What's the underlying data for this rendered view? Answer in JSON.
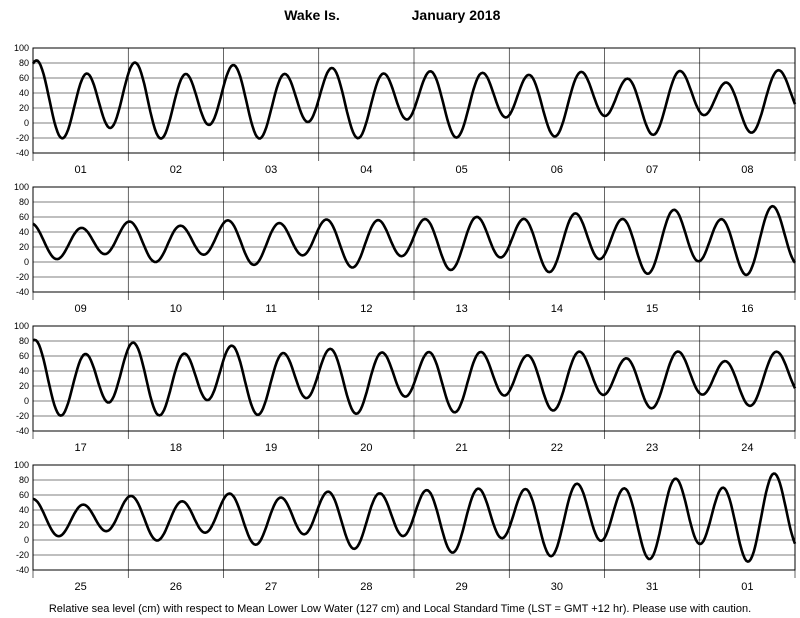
{
  "title": {
    "station": "Wake Is.",
    "month_year": "January   2018"
  },
  "footer": "Relative sea level (cm) with respect to Mean Lower Low Water (127 cm) and Local Standard Time (LST = GMT +12 hr). Please use with caution.",
  "chart_data": {
    "type": "line",
    "ylim": [
      -40,
      100
    ],
    "yticks": [
      -40,
      -20,
      0,
      20,
      40,
      60,
      80,
      100
    ],
    "grid": true,
    "series_color": "#000000",
    "panels": [
      {
        "days": [
          "01",
          "02",
          "03",
          "04",
          "05",
          "06",
          "07",
          "08"
        ],
        "tide": {
          "x_day_offset": 0,
          "mean": 30,
          "d1_start": 45,
          "d1_end": 30,
          "d2_start": 10,
          "d2_end": 15,
          "phase1": -0.5,
          "phase2": 0.3,
          "cycles_per_day": 1.93
        }
      },
      {
        "days": [
          "09",
          "10",
          "11",
          "12",
          "13",
          "14",
          "15",
          "16"
        ],
        "tide": {
          "x_day_offset": 8,
          "mean": 28,
          "d1_start": 20,
          "d1_end": 38,
          "d2_start": 5,
          "d2_end": 12,
          "phase1": 0.2,
          "phase2": 0.8,
          "cycles_per_day": 1.93
        }
      },
      {
        "days": [
          "17",
          "18",
          "19",
          "20",
          "21",
          "22",
          "23",
          "24"
        ],
        "tide": {
          "x_day_offset": 16,
          "mean": 30,
          "d1_start": 42,
          "d1_end": 28,
          "d2_start": 12,
          "d2_end": 10,
          "phase1": -0.3,
          "phase2": 0.5,
          "cycles_per_day": 1.93
        }
      },
      {
        "days": [
          "25",
          "26",
          "27",
          "28",
          "29",
          "30",
          "31",
          "01"
        ],
        "tide": {
          "x_day_offset": 24,
          "mean": 30,
          "d1_start": 20,
          "d1_end": 50,
          "d2_start": 6,
          "d2_end": 14,
          "phase1": 0.0,
          "phase2": 0.6,
          "cycles_per_day": 1.93
        }
      }
    ]
  }
}
